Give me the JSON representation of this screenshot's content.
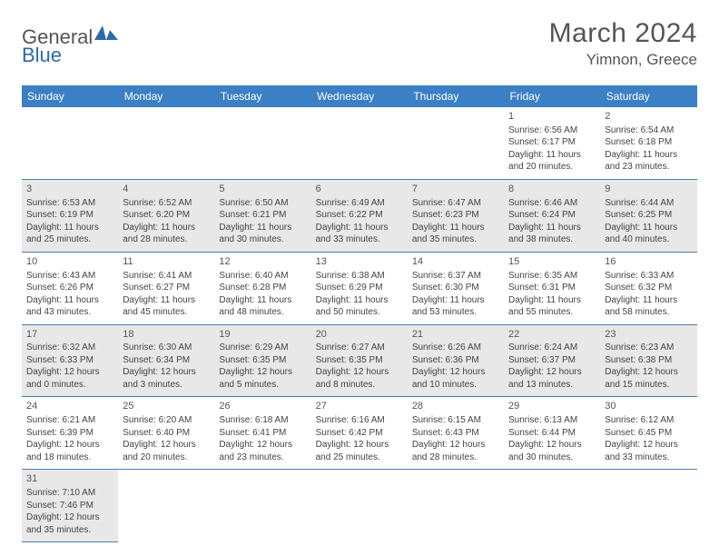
{
  "logo": {
    "text1": "General",
    "text2": "Blue"
  },
  "title": "March 2024",
  "location": "Yimnon, Greece",
  "headerBg": "#3b7fc4",
  "rowAltBg": "#e8e8e8",
  "borderColor": "#4a7fb0",
  "dayHeaders": [
    "Sunday",
    "Monday",
    "Tuesday",
    "Wednesday",
    "Thursday",
    "Friday",
    "Saturday"
  ],
  "weeks": [
    [
      null,
      null,
      null,
      null,
      null,
      {
        "n": "1",
        "sr": "Sunrise: 6:56 AM",
        "ss": "Sunset: 6:17 PM",
        "dl": "Daylight: 11 hours and 20 minutes."
      },
      {
        "n": "2",
        "sr": "Sunrise: 6:54 AM",
        "ss": "Sunset: 6:18 PM",
        "dl": "Daylight: 11 hours and 23 minutes."
      }
    ],
    [
      {
        "n": "3",
        "sr": "Sunrise: 6:53 AM",
        "ss": "Sunset: 6:19 PM",
        "dl": "Daylight: 11 hours and 25 minutes."
      },
      {
        "n": "4",
        "sr": "Sunrise: 6:52 AM",
        "ss": "Sunset: 6:20 PM",
        "dl": "Daylight: 11 hours and 28 minutes."
      },
      {
        "n": "5",
        "sr": "Sunrise: 6:50 AM",
        "ss": "Sunset: 6:21 PM",
        "dl": "Daylight: 11 hours and 30 minutes."
      },
      {
        "n": "6",
        "sr": "Sunrise: 6:49 AM",
        "ss": "Sunset: 6:22 PM",
        "dl": "Daylight: 11 hours and 33 minutes."
      },
      {
        "n": "7",
        "sr": "Sunrise: 6:47 AM",
        "ss": "Sunset: 6:23 PM",
        "dl": "Daylight: 11 hours and 35 minutes."
      },
      {
        "n": "8",
        "sr": "Sunrise: 6:46 AM",
        "ss": "Sunset: 6:24 PM",
        "dl": "Daylight: 11 hours and 38 minutes."
      },
      {
        "n": "9",
        "sr": "Sunrise: 6:44 AM",
        "ss": "Sunset: 6:25 PM",
        "dl": "Daylight: 11 hours and 40 minutes."
      }
    ],
    [
      {
        "n": "10",
        "sr": "Sunrise: 6:43 AM",
        "ss": "Sunset: 6:26 PM",
        "dl": "Daylight: 11 hours and 43 minutes."
      },
      {
        "n": "11",
        "sr": "Sunrise: 6:41 AM",
        "ss": "Sunset: 6:27 PM",
        "dl": "Daylight: 11 hours and 45 minutes."
      },
      {
        "n": "12",
        "sr": "Sunrise: 6:40 AM",
        "ss": "Sunset: 6:28 PM",
        "dl": "Daylight: 11 hours and 48 minutes."
      },
      {
        "n": "13",
        "sr": "Sunrise: 6:38 AM",
        "ss": "Sunset: 6:29 PM",
        "dl": "Daylight: 11 hours and 50 minutes."
      },
      {
        "n": "14",
        "sr": "Sunrise: 6:37 AM",
        "ss": "Sunset: 6:30 PM",
        "dl": "Daylight: 11 hours and 53 minutes."
      },
      {
        "n": "15",
        "sr": "Sunrise: 6:35 AM",
        "ss": "Sunset: 6:31 PM",
        "dl": "Daylight: 11 hours and 55 minutes."
      },
      {
        "n": "16",
        "sr": "Sunrise: 6:33 AM",
        "ss": "Sunset: 6:32 PM",
        "dl": "Daylight: 11 hours and 58 minutes."
      }
    ],
    [
      {
        "n": "17",
        "sr": "Sunrise: 6:32 AM",
        "ss": "Sunset: 6:33 PM",
        "dl": "Daylight: 12 hours and 0 minutes."
      },
      {
        "n": "18",
        "sr": "Sunrise: 6:30 AM",
        "ss": "Sunset: 6:34 PM",
        "dl": "Daylight: 12 hours and 3 minutes."
      },
      {
        "n": "19",
        "sr": "Sunrise: 6:29 AM",
        "ss": "Sunset: 6:35 PM",
        "dl": "Daylight: 12 hours and 5 minutes."
      },
      {
        "n": "20",
        "sr": "Sunrise: 6:27 AM",
        "ss": "Sunset: 6:35 PM",
        "dl": "Daylight: 12 hours and 8 minutes."
      },
      {
        "n": "21",
        "sr": "Sunrise: 6:26 AM",
        "ss": "Sunset: 6:36 PM",
        "dl": "Daylight: 12 hours and 10 minutes."
      },
      {
        "n": "22",
        "sr": "Sunrise: 6:24 AM",
        "ss": "Sunset: 6:37 PM",
        "dl": "Daylight: 12 hours and 13 minutes."
      },
      {
        "n": "23",
        "sr": "Sunrise: 6:23 AM",
        "ss": "Sunset: 6:38 PM",
        "dl": "Daylight: 12 hours and 15 minutes."
      }
    ],
    [
      {
        "n": "24",
        "sr": "Sunrise: 6:21 AM",
        "ss": "Sunset: 6:39 PM",
        "dl": "Daylight: 12 hours and 18 minutes."
      },
      {
        "n": "25",
        "sr": "Sunrise: 6:20 AM",
        "ss": "Sunset: 6:40 PM",
        "dl": "Daylight: 12 hours and 20 minutes."
      },
      {
        "n": "26",
        "sr": "Sunrise: 6:18 AM",
        "ss": "Sunset: 6:41 PM",
        "dl": "Daylight: 12 hours and 23 minutes."
      },
      {
        "n": "27",
        "sr": "Sunrise: 6:16 AM",
        "ss": "Sunset: 6:42 PM",
        "dl": "Daylight: 12 hours and 25 minutes."
      },
      {
        "n": "28",
        "sr": "Sunrise: 6:15 AM",
        "ss": "Sunset: 6:43 PM",
        "dl": "Daylight: 12 hours and 28 minutes."
      },
      {
        "n": "29",
        "sr": "Sunrise: 6:13 AM",
        "ss": "Sunset: 6:44 PM",
        "dl": "Daylight: 12 hours and 30 minutes."
      },
      {
        "n": "30",
        "sr": "Sunrise: 6:12 AM",
        "ss": "Sunset: 6:45 PM",
        "dl": "Daylight: 12 hours and 33 minutes."
      }
    ],
    [
      {
        "n": "31",
        "sr": "Sunrise: 7:10 AM",
        "ss": "Sunset: 7:46 PM",
        "dl": "Daylight: 12 hours and 35 minutes."
      },
      null,
      null,
      null,
      null,
      null,
      null
    ]
  ]
}
